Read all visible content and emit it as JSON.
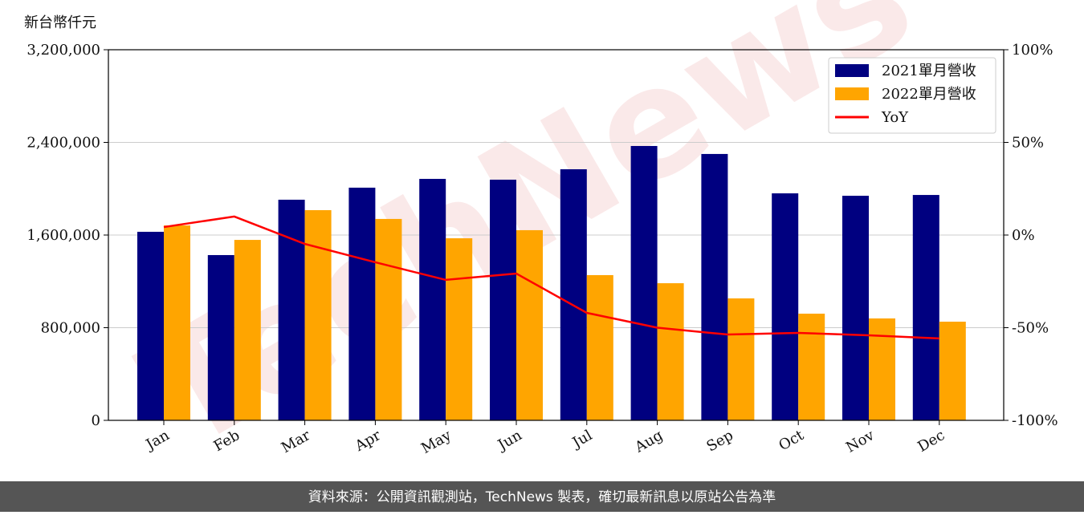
{
  "chart_data": {
    "type": "bar-line",
    "y_axis_label": "新台幣仟元",
    "categories": [
      "Jan",
      "Feb",
      "Mar",
      "Apr",
      "May",
      "Jun",
      "Jul",
      "Aug",
      "Sep",
      "Oct",
      "Nov",
      "Dec"
    ],
    "series": [
      {
        "name": "2021單月營收",
        "color": "#000080",
        "type": "bar",
        "values": [
          1628000,
          1427000,
          1905000,
          2009000,
          2085000,
          2078000,
          2168000,
          2369000,
          2300000,
          1960000,
          1939000,
          1946000
        ]
      },
      {
        "name": "2022單月營收",
        "color": "#ffa500",
        "type": "bar",
        "values": [
          1683000,
          1558000,
          1815000,
          1739000,
          1572000,
          1642000,
          1254000,
          1184000,
          1053000,
          921000,
          880000,
          852000
        ]
      },
      {
        "name": "YoY",
        "color": "#ff0000",
        "type": "line",
        "axis": "y2",
        "values": [
          4.3,
          10,
          -4.8,
          -14.7,
          -24.2,
          -20.8,
          -42,
          -50,
          -53.7,
          -52.8,
          -54.1,
          -55.8
        ]
      }
    ],
    "ylim": [
      0,
      3200000
    ],
    "yticks": [
      0,
      {
        "value": 800000,
        "label": "800,000"
      },
      {
        "value": 1600000,
        "label": "1,600,000"
      },
      {
        "value": 2400000,
        "label": "2,400,000"
      },
      {
        "value": 3200000,
        "label": "3,200,000"
      }
    ],
    "y2lim": [
      -100,
      100
    ],
    "y2ticks": [
      {
        "value": -100,
        "label": "-100%"
      },
      {
        "value": -50,
        "label": "-50%"
      },
      {
        "value": 0,
        "label": "0%"
      },
      {
        "value": 50,
        "label": "50%"
      },
      {
        "value": 100,
        "label": "100%"
      }
    ],
    "grid": true,
    "legend": "upper right",
    "watermark": "TechNews",
    "source_note": "資料來源：公開資訊觀測站，TechNews 製表，確切最新訊息以原站公告為準"
  }
}
